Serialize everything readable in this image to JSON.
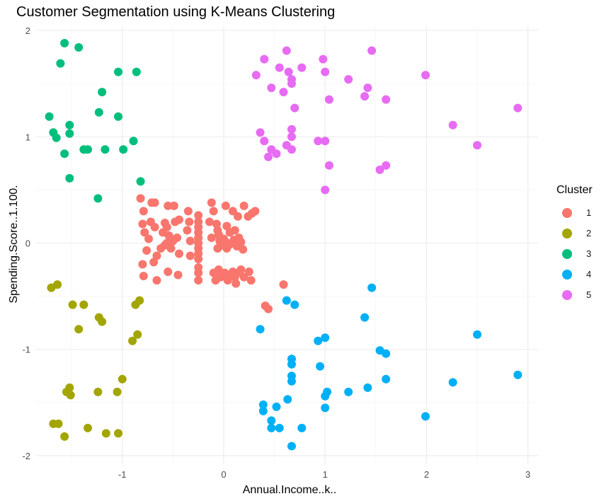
{
  "chart_data": {
    "type": "scatter",
    "title": "Customer Segmentation using K-Means Clustering",
    "xlabel": "Annual.Income..k..",
    "ylabel": "Spending.Score..1.100.",
    "xlim": [
      -1.85,
      3.1
    ],
    "ylim": [
      -2.08,
      2.04
    ],
    "x_ticks": [
      -1,
      0,
      1,
      2,
      3
    ],
    "y_ticks": [
      -2,
      -1,
      0,
      1,
      2
    ],
    "grid": true,
    "legend_title": "Cluster",
    "legend_position": "right",
    "series": [
      {
        "name": "1",
        "color": "#F8766D",
        "points": [
          [
            -0.82,
            0.42
          ],
          [
            -0.71,
            0.38
          ],
          [
            -0.68,
            0.38
          ],
          [
            -0.55,
            0.35
          ],
          [
            -0.49,
            0.35
          ],
          [
            -0.79,
            0.3
          ],
          [
            -0.72,
            0.2
          ],
          [
            -0.74,
            0.04
          ],
          [
            -0.68,
            0.15
          ],
          [
            -0.58,
            0.19
          ],
          [
            -0.56,
            0.15
          ],
          [
            -0.54,
            0.07
          ],
          [
            -0.48,
            0.2
          ],
          [
            -0.44,
            0.22
          ],
          [
            -0.8,
            0.18
          ],
          [
            -0.78,
            0.1
          ],
          [
            -0.76,
            -0.07
          ],
          [
            -0.8,
            -0.2
          ],
          [
            -0.69,
            -0.18
          ],
          [
            -0.66,
            -0.12
          ],
          [
            -0.62,
            -0.05
          ],
          [
            -0.58,
            -0.02
          ],
          [
            -0.56,
            0.0
          ],
          [
            -0.5,
            0.02
          ],
          [
            -0.46,
            0.05
          ],
          [
            -0.44,
            -0.1
          ],
          [
            -0.52,
            -0.05
          ],
          [
            -0.6,
            0.1
          ],
          [
            -0.66,
            -0.35
          ],
          [
            -0.55,
            -0.27
          ],
          [
            -0.45,
            -0.3
          ],
          [
            -0.79,
            -0.31
          ],
          [
            -0.35,
            0.3
          ],
          [
            -0.25,
            0.26
          ],
          [
            -0.25,
            0.2
          ],
          [
            -0.25,
            0.15
          ],
          [
            -0.25,
            0.1
          ],
          [
            -0.25,
            0.05
          ],
          [
            -0.25,
            0.0
          ],
          [
            -0.25,
            -0.05
          ],
          [
            -0.25,
            -0.1
          ],
          [
            -0.25,
            -0.15
          ],
          [
            -0.25,
            -0.23
          ],
          [
            -0.25,
            -0.28
          ],
          [
            -0.25,
            -0.35
          ],
          [
            -0.34,
            0.2
          ],
          [
            -0.33,
            0.02
          ],
          [
            -0.33,
            -0.12
          ],
          [
            -0.36,
            0.12
          ],
          [
            -0.12,
            0.38
          ],
          [
            -0.1,
            0.3
          ],
          [
            -0.14,
            0.2
          ],
          [
            -0.07,
            0.18
          ],
          [
            -0.06,
            0.12
          ],
          [
            -0.05,
            0.08
          ],
          [
            -0.04,
            0.02
          ],
          [
            -0.02,
            -0.02
          ],
          [
            0.0,
            0.04
          ],
          [
            0.02,
            0.01
          ],
          [
            0.03,
            -0.05
          ],
          [
            0.05,
            -0.02
          ],
          [
            0.08,
            0.0
          ],
          [
            0.1,
            0.03
          ],
          [
            0.13,
            -0.03
          ],
          [
            0.15,
            0.05
          ],
          [
            0.17,
            0.01
          ],
          [
            0.19,
            -0.06
          ],
          [
            0.02,
            0.35
          ],
          [
            0.09,
            0.3
          ],
          [
            0.14,
            0.25
          ],
          [
            0.2,
            0.35
          ],
          [
            0.24,
            0.25
          ],
          [
            0.31,
            0.3
          ],
          [
            0.28,
            0.28
          ],
          [
            -0.05,
            -0.25
          ],
          [
            -0.03,
            -0.32
          ],
          [
            0.01,
            -0.28
          ],
          [
            0.04,
            -0.35
          ],
          [
            0.06,
            -0.3
          ],
          [
            0.09,
            -0.27
          ],
          [
            0.11,
            -0.32
          ],
          [
            0.14,
            -0.28
          ],
          [
            0.17,
            -0.25
          ],
          [
            0.2,
            -0.32
          ],
          [
            0.25,
            -0.27
          ],
          [
            0.27,
            -0.35
          ],
          [
            -0.08,
            -0.35
          ],
          [
            -0.1,
            -0.28
          ],
          [
            0.12,
            -0.38
          ],
          [
            -0.06,
            -0.05
          ],
          [
            -0.12,
            0.05
          ],
          [
            0.06,
            0.1
          ],
          [
            0.11,
            0.12
          ],
          [
            0.03,
            0.16
          ],
          [
            0.59,
            -0.39
          ],
          [
            0.41,
            -0.59
          ],
          [
            0.44,
            -0.62
          ]
        ]
      },
      {
        "name": "2",
        "color": "#A3A500",
        "points": [
          [
            -1.7,
            -0.42
          ],
          [
            -1.64,
            -0.39
          ],
          [
            -1.49,
            -0.58
          ],
          [
            -1.38,
            -0.58
          ],
          [
            -1.43,
            -0.81
          ],
          [
            -1.23,
            -0.7
          ],
          [
            -1.2,
            -0.74
          ],
          [
            -0.87,
            -0.58
          ],
          [
            -0.83,
            -0.54
          ],
          [
            -0.85,
            -0.86
          ],
          [
            -0.9,
            -0.92
          ],
          [
            -1.55,
            -1.4
          ],
          [
            -1.52,
            -1.36
          ],
          [
            -1.51,
            -1.43
          ],
          [
            -1.24,
            -1.4
          ],
          [
            -1.05,
            -1.4
          ],
          [
            -1.0,
            -1.28
          ],
          [
            -1.68,
            -1.7
          ],
          [
            -1.63,
            -1.7
          ],
          [
            -1.57,
            -1.82
          ],
          [
            -1.34,
            -1.74
          ],
          [
            -1.16,
            -1.79
          ],
          [
            -1.04,
            -1.79
          ]
        ]
      },
      {
        "name": "3",
        "color": "#00BF7D",
        "points": [
          [
            -1.57,
            1.88
          ],
          [
            -1.43,
            1.84
          ],
          [
            -1.61,
            1.69
          ],
          [
            -1.04,
            1.61
          ],
          [
            -0.86,
            1.61
          ],
          [
            -1.2,
            1.42
          ],
          [
            -1.23,
            1.23
          ],
          [
            -1.04,
            1.19
          ],
          [
            -1.72,
            1.19
          ],
          [
            -1.52,
            1.11
          ],
          [
            -1.68,
            1.04
          ],
          [
            -1.65,
            0.99
          ],
          [
            -1.52,
            1.03
          ],
          [
            -1.57,
            0.84
          ],
          [
            -1.38,
            0.88
          ],
          [
            -1.34,
            0.88
          ],
          [
            -1.17,
            0.88
          ],
          [
            -0.99,
            0.88
          ],
          [
            -0.89,
            0.96
          ],
          [
            -1.52,
            0.61
          ],
          [
            -0.82,
            0.58
          ],
          [
            -1.24,
            0.42
          ]
        ]
      },
      {
        "name": "4",
        "color": "#00B0F6",
        "points": [
          [
            1.46,
            -0.42
          ],
          [
            0.62,
            -0.54
          ],
          [
            0.7,
            -0.58
          ],
          [
            0.36,
            -0.81
          ],
          [
            1.39,
            -0.7
          ],
          [
            0.93,
            -0.92
          ],
          [
            1.0,
            -0.89
          ],
          [
            1.54,
            -1.01
          ],
          [
            1.6,
            -1.04
          ],
          [
            2.5,
            -0.86
          ],
          [
            0.67,
            -1.09
          ],
          [
            0.67,
            -1.14
          ],
          [
            0.95,
            -1.16
          ],
          [
            0.67,
            -1.25
          ],
          [
            0.67,
            -1.3
          ],
          [
            1.0,
            -1.44
          ],
          [
            1.02,
            -1.4
          ],
          [
            1.23,
            -1.4
          ],
          [
            1.42,
            -1.36
          ],
          [
            1.6,
            -1.28
          ],
          [
            2.26,
            -1.31
          ],
          [
            2.9,
            -1.24
          ],
          [
            1.0,
            -1.55
          ],
          [
            0.39,
            -1.52
          ],
          [
            0.39,
            -1.58
          ],
          [
            0.52,
            -1.54
          ],
          [
            0.63,
            -1.47
          ],
          [
            0.47,
            -1.67
          ],
          [
            0.47,
            -1.74
          ],
          [
            0.55,
            -1.74
          ],
          [
            0.77,
            -1.74
          ],
          [
            1.99,
            -1.63
          ],
          [
            0.67,
            -1.91
          ]
        ]
      },
      {
        "name": "5",
        "color": "#E76BF3",
        "points": [
          [
            0.4,
            1.73
          ],
          [
            0.62,
            1.81
          ],
          [
            0.98,
            1.73
          ],
          [
            1.46,
            1.81
          ],
          [
            0.32,
            1.58
          ],
          [
            0.55,
            1.65
          ],
          [
            0.64,
            1.61
          ],
          [
            0.67,
            1.54
          ],
          [
            0.67,
            1.5
          ],
          [
            0.77,
            1.65
          ],
          [
            1.0,
            1.61
          ],
          [
            0.47,
            1.46
          ],
          [
            0.59,
            1.42
          ],
          [
            0.7,
            1.27
          ],
          [
            1.04,
            1.35
          ],
          [
            1.23,
            1.54
          ],
          [
            1.39,
            1.38
          ],
          [
            1.42,
            1.46
          ],
          [
            1.6,
            1.35
          ],
          [
            1.99,
            1.58
          ],
          [
            2.26,
            1.11
          ],
          [
            2.9,
            1.27
          ],
          [
            0.36,
            1.04
          ],
          [
            0.4,
            0.96
          ],
          [
            0.67,
            1.07
          ],
          [
            0.67,
            1.0
          ],
          [
            0.47,
            0.88
          ],
          [
            0.52,
            0.84
          ],
          [
            0.44,
            0.81
          ],
          [
            0.62,
            0.92
          ],
          [
            0.67,
            0.88
          ],
          [
            0.93,
            0.96
          ],
          [
            1.0,
            0.96
          ],
          [
            1.04,
            0.73
          ],
          [
            1.54,
            0.69
          ],
          [
            1.6,
            0.73
          ],
          [
            2.5,
            0.92
          ],
          [
            1.0,
            0.5
          ]
        ]
      }
    ]
  }
}
